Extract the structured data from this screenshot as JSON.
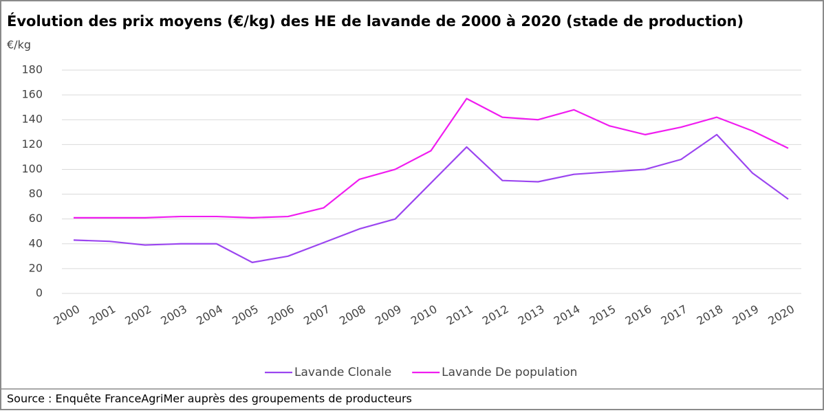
{
  "chart_data": {
    "type": "line",
    "title": "Évolution des prix moyens (€/kg) des HE de lavande de 2000 à 2020 (stade de production)",
    "y_label": "€/kg",
    "source": "Source : Enquête FranceAgriMer auprès des groupements de producteurs",
    "categories": [
      "2000",
      "2001",
      "2002",
      "2003",
      "2004",
      "2005",
      "2006",
      "2007",
      "2008",
      "2009",
      "2010",
      "2011",
      "2012",
      "2013",
      "2014",
      "2015",
      "2016",
      "2017",
      "2018",
      "2019",
      "2020"
    ],
    "series": [
      {
        "name": "Lavande Clonale",
        "color": "#9b45f0",
        "values": [
          43,
          42,
          39,
          40,
          40,
          25,
          30,
          41,
          52,
          60,
          89,
          118,
          91,
          90,
          96,
          98,
          100,
          108,
          128,
          97,
          76
        ]
      },
      {
        "name": "Lavande De population",
        "color": "#f01cf0",
        "values": [
          61,
          61,
          61,
          62,
          62,
          61,
          62,
          69,
          92,
          100,
          115,
          157,
          142,
          140,
          148,
          135,
          128,
          134,
          142,
          131,
          117
        ]
      }
    ],
    "ylim": [
      0,
      180
    ],
    "yticks": [
      0,
      20,
      40,
      60,
      80,
      100,
      120,
      140,
      160,
      180
    ],
    "grid": true,
    "legend": "bottom"
  }
}
